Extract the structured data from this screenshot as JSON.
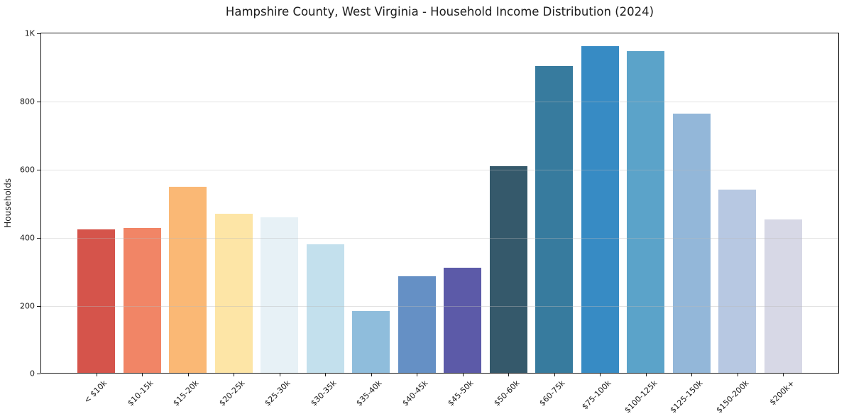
{
  "chart_data": {
    "type": "bar",
    "title": "Hampshire County, West Virginia - Household Income Distribution (2024)",
    "xlabel": "",
    "ylabel": "Households",
    "categories": [
      "< $10k",
      "$10-15k",
      "$15-20k",
      "$20-25k",
      "$25-30k",
      "$30-35k",
      "$35-40k",
      "$40-45k",
      "$45-50k",
      "$50-60k",
      "$60-75k",
      "$75-100k",
      "$100-125k",
      "$125-150k",
      "$150-200k",
      "$200k+"
    ],
    "values": [
      421,
      425,
      545,
      467,
      456,
      378,
      181,
      283,
      309,
      607,
      900,
      958,
      944,
      760,
      538,
      451
    ],
    "bar_colors": [
      "#d5544b",
      "#f18566",
      "#fab875",
      "#fde5a6",
      "#e7f1f6",
      "#c3e0ed",
      "#8fbddc",
      "#6590c5",
      "#5c5aa8",
      "#35596b",
      "#377b9e",
      "#378bc4",
      "#5ba3c9",
      "#93b7d9",
      "#b7c8e2",
      "#d7d8e6"
    ],
    "ylim": [
      0,
      1000
    ],
    "yticks": [
      {
        "value": 0,
        "label": "0"
      },
      {
        "value": 200,
        "label": "200"
      },
      {
        "value": 400,
        "label": "400"
      },
      {
        "value": 600,
        "label": "600"
      },
      {
        "value": 800,
        "label": "800"
      },
      {
        "value": 1000,
        "label": "1K"
      }
    ],
    "grid": "horizontal",
    "legend": "none",
    "colors": {
      "background": "#ffffff",
      "spine": "#1a1a1a",
      "grid": "#ebebeb",
      "text": "#191919"
    }
  }
}
